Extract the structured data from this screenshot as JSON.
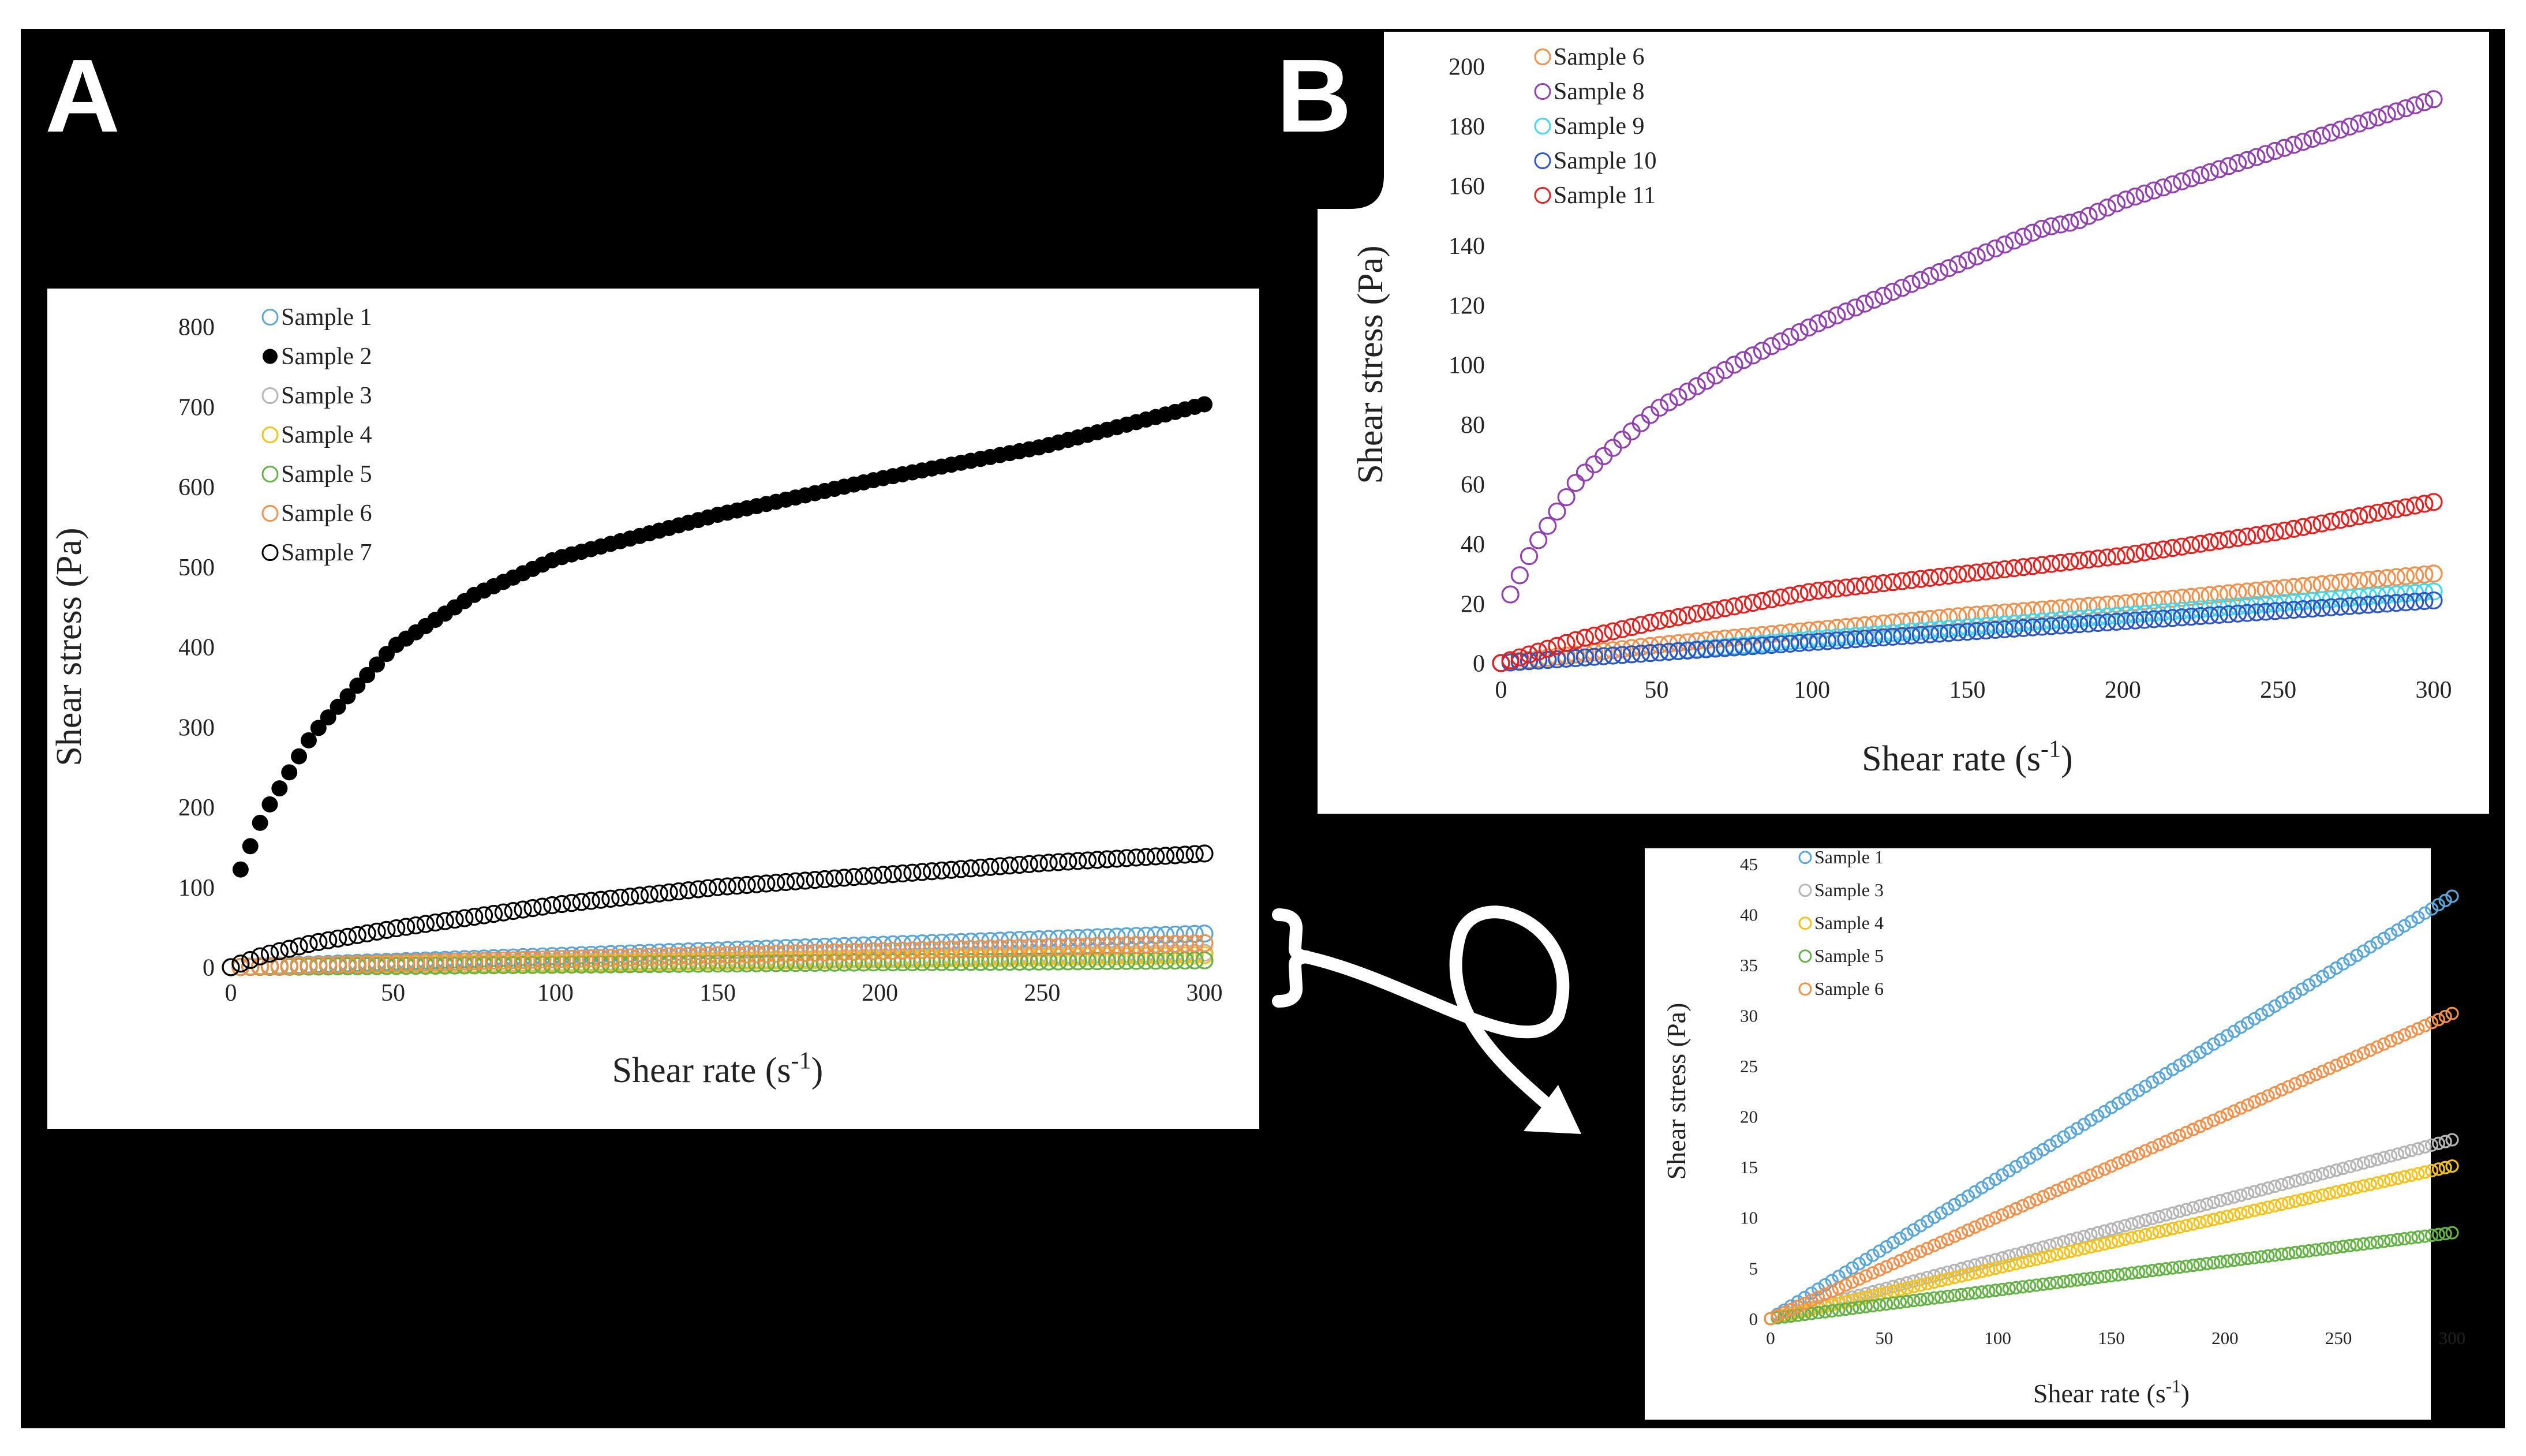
{
  "labels": {
    "panelA": "A",
    "panelB": "B"
  },
  "colors": {
    "background": "#000000",
    "sample1": "#5aa6d6",
    "sample2": "#000000",
    "sample3": "#b5b5b5",
    "sample4": "#f2c21b",
    "sample5": "#64b246",
    "sample6": "#f0904a",
    "sample7": "#000000",
    "sample8": "#9140b0",
    "sample9": "#3fd8ef",
    "sample10": "#2e55c4",
    "sample11": "#e51e1e"
  },
  "chart_data": [
    {
      "id": "A",
      "type": "scatter",
      "xlabel": "Shear rate (s-1)",
      "ylabel": "Shear stress (Pa)",
      "xlim": [
        0,
        300
      ],
      "ylim": [
        0,
        800
      ],
      "xticks": [
        0,
        50,
        100,
        150,
        200,
        250,
        300
      ],
      "yticks": [
        0,
        100,
        200,
        300,
        400,
        500,
        600,
        700,
        800
      ],
      "legend_position": "top-left",
      "series": [
        {
          "name": "Sample 1",
          "filled": false,
          "color_key": "sample1",
          "x": [
            0,
            50,
            100,
            150,
            200,
            250,
            300
          ],
          "y": [
            0,
            7,
            14,
            21,
            28,
            35,
            42
          ]
        },
        {
          "name": "Sample 2",
          "filled": true,
          "color_key": "sample2",
          "x": [
            3,
            10,
            25,
            50,
            75,
            100,
            150,
            200,
            250,
            300
          ],
          "y": [
            122,
            190,
            290,
            400,
            465,
            510,
            565,
            610,
            650,
            703
          ]
        },
        {
          "name": "Sample 3",
          "filled": false,
          "color_key": "sample3",
          "x": [
            0,
            50,
            100,
            150,
            200,
            250,
            300
          ],
          "y": [
            0,
            3,
            6,
            9,
            12,
            15,
            18
          ]
        },
        {
          "name": "Sample 4",
          "filled": false,
          "color_key": "sample4",
          "x": [
            0,
            50,
            100,
            150,
            200,
            250,
            300
          ],
          "y": [
            0,
            2.5,
            5,
            7.5,
            10,
            12.5,
            15
          ]
        },
        {
          "name": "Sample 5",
          "filled": false,
          "color_key": "sample5",
          "x": [
            0,
            50,
            100,
            150,
            200,
            250,
            300
          ],
          "y": [
            0,
            1.5,
            3,
            4.5,
            6,
            7,
            8.5
          ]
        },
        {
          "name": "Sample 6",
          "filled": false,
          "color_key": "sample6",
          "x": [
            0,
            50,
            100,
            150,
            200,
            250,
            300
          ],
          "y": [
            0,
            5,
            10,
            15,
            20,
            25,
            30
          ]
        },
        {
          "name": "Sample 7",
          "filled": false,
          "color_key": "sample7",
          "x": [
            0,
            10,
            25,
            50,
            100,
            150,
            200,
            250,
            300
          ],
          "y": [
            0,
            15,
            30,
            48,
            78,
            100,
            115,
            130,
            142
          ]
        }
      ]
    },
    {
      "id": "B",
      "type": "scatter",
      "xlabel": "Shear rate (s-1)",
      "ylabel": "Shear stress (Pa)",
      "xlim": [
        0,
        300
      ],
      "ylim": [
        0,
        200
      ],
      "xticks": [
        0,
        50,
        100,
        150,
        200,
        250,
        300
      ],
      "yticks": [
        0,
        20,
        40,
        60,
        80,
        100,
        120,
        140,
        160,
        180,
        200
      ],
      "legend_position": "top-left",
      "series": [
        {
          "name": "Sample 6",
          "filled": false,
          "color_key": "sample6",
          "x": [
            0,
            50,
            100,
            150,
            200,
            250,
            300
          ],
          "y": [
            0,
            6,
            11,
            16,
            20,
            25,
            30
          ]
        },
        {
          "name": "Sample 8",
          "filled": false,
          "color_key": "sample8",
          "x": [
            3,
            10,
            25,
            50,
            75,
            100,
            150,
            175,
            185,
            200,
            250,
            300
          ],
          "y": [
            23,
            38,
            62,
            85,
            100,
            113,
            135,
            146,
            148,
            155,
            172,
            189
          ]
        },
        {
          "name": "Sample 9",
          "filled": false,
          "color_key": "sample9",
          "x": [
            0,
            50,
            100,
            150,
            200,
            250,
            300
          ],
          "y": [
            0,
            3.5,
            8,
            12,
            16,
            20,
            24
          ]
        },
        {
          "name": "Sample 10",
          "filled": false,
          "color_key": "sample10",
          "x": [
            0,
            50,
            100,
            150,
            200,
            250,
            300
          ],
          "y": [
            0,
            3.5,
            7,
            10.5,
            14,
            17.5,
            21
          ]
        },
        {
          "name": "Sample 11",
          "filled": false,
          "color_key": "sample11",
          "x": [
            0,
            25,
            50,
            100,
            150,
            200,
            250,
            300
          ],
          "y": [
            0,
            8,
            14,
            24,
            30,
            36,
            44,
            54
          ]
        }
      ]
    },
    {
      "id": "inset",
      "type": "scatter",
      "xlabel": "Shear rate (s-1)",
      "ylabel": "Shear stress (Pa)",
      "xlim": [
        0,
        300
      ],
      "ylim": [
        0,
        45
      ],
      "xticks": [
        0,
        50,
        100,
        150,
        200,
        250,
        300
      ],
      "yticks": [
        0,
        5,
        10,
        15,
        20,
        25,
        30,
        35,
        40,
        45
      ],
      "legend_position": "top-left",
      "series": [
        {
          "name": "Sample 1",
          "filled": false,
          "color_key": "sample1",
          "x": [
            0,
            300
          ],
          "y": [
            0,
            41.8
          ]
        },
        {
          "name": "Sample 3",
          "filled": false,
          "color_key": "sample3",
          "x": [
            0,
            300
          ],
          "y": [
            0,
            17.7
          ]
        },
        {
          "name": "Sample 4",
          "filled": false,
          "color_key": "sample4",
          "x": [
            0,
            300
          ],
          "y": [
            0,
            15.1
          ]
        },
        {
          "name": "Sample 5",
          "filled": false,
          "color_key": "sample5",
          "x": [
            0,
            300
          ],
          "y": [
            0,
            8.5
          ]
        },
        {
          "name": "Sample 6",
          "filled": false,
          "color_key": "sample6",
          "x": [
            0,
            300
          ],
          "y": [
            0,
            30.2
          ]
        }
      ]
    }
  ]
}
